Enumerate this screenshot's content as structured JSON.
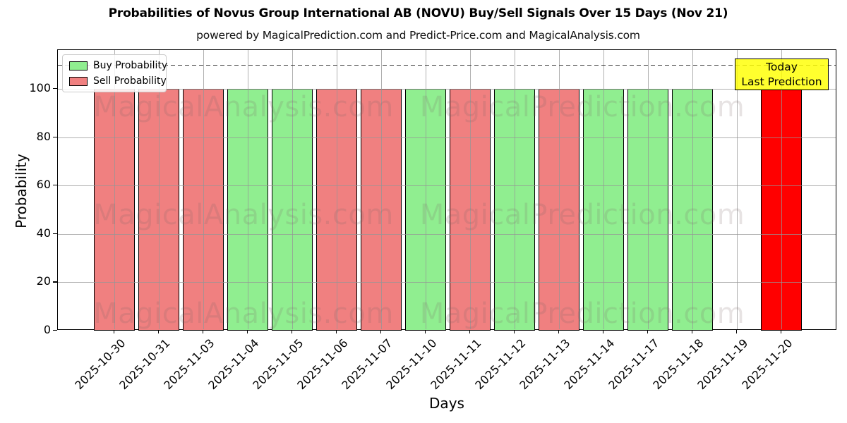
{
  "figure": {
    "title": "Probabilities of Novus Group International AB (NOVU) Buy/Sell Signals Over 15 Days (Nov 21)",
    "subtitle": "powered by MagicalPrediction.com and Predict-Price.com and MagicalAnalysis.com"
  },
  "axes": {
    "xlabel": "Days",
    "ylabel": "Probability"
  },
  "legend": {
    "items": [
      {
        "label": "Buy Probability",
        "color": "#90EE90"
      },
      {
        "label": "Sell Probability",
        "color": "#F08080"
      }
    ]
  },
  "annotation": {
    "line1": "Today",
    "line2": "Last Prediction",
    "bg_color": "#FFFF00",
    "border_color": "#000000"
  },
  "watermarks": {
    "left_text": "MagicalAnalysis.com",
    "right_text": "MagicalPrediction.com"
  },
  "chart_data": {
    "type": "bar",
    "title": "Probabilities of Novus Group International AB (NOVU) Buy/Sell Signals Over 15 Days (Nov 21)",
    "subtitle": "powered by MagicalPrediction.com and Predict-Price.com and MagicalAnalysis.com",
    "xlabel": "Days",
    "ylabel": "Probability",
    "ylim": [
      0,
      116
    ],
    "yticks": [
      0,
      20,
      40,
      60,
      80,
      100
    ],
    "dashed_threshold_y": 110,
    "grid": true,
    "legend_position": "upper left",
    "categories": [
      "2025-10-30",
      "2025-10-31",
      "2025-11-03",
      "2025-11-04",
      "2025-11-05",
      "2025-11-06",
      "2025-11-07",
      "2025-11-10",
      "2025-11-11",
      "2025-11-12",
      "2025-11-13",
      "2025-11-14",
      "2025-11-17",
      "2025-11-18",
      "2025-11-19",
      "2025-11-20"
    ],
    "values": [
      100,
      100,
      100,
      100,
      100,
      100,
      100,
      100,
      100,
      100,
      100,
      100,
      100,
      100,
      0,
      100
    ],
    "signals": [
      "sell",
      "sell",
      "sell",
      "buy",
      "buy",
      "sell",
      "sell",
      "buy",
      "sell",
      "buy",
      "sell",
      "buy",
      "buy",
      "buy",
      "none",
      "today"
    ],
    "series": [
      {
        "name": "Buy Probability",
        "color": "#90EE90",
        "values": [
          0,
          0,
          0,
          100,
          100,
          0,
          0,
          100,
          0,
          100,
          0,
          100,
          100,
          100,
          0,
          0
        ]
      },
      {
        "name": "Sell Probability",
        "color": "#F08080",
        "values": [
          100,
          100,
          100,
          0,
          0,
          100,
          100,
          0,
          100,
          0,
          100,
          0,
          0,
          0,
          0,
          0
        ]
      },
      {
        "name": "Today Last Prediction",
        "color": "#FF0000",
        "values": [
          0,
          0,
          0,
          0,
          0,
          0,
          0,
          0,
          0,
          0,
          0,
          0,
          0,
          0,
          0,
          100
        ]
      }
    ],
    "colors": {
      "buy": "#90EE90",
      "sell": "#F08080",
      "today": "#FF0000",
      "bar_edge": "#000000"
    }
  }
}
